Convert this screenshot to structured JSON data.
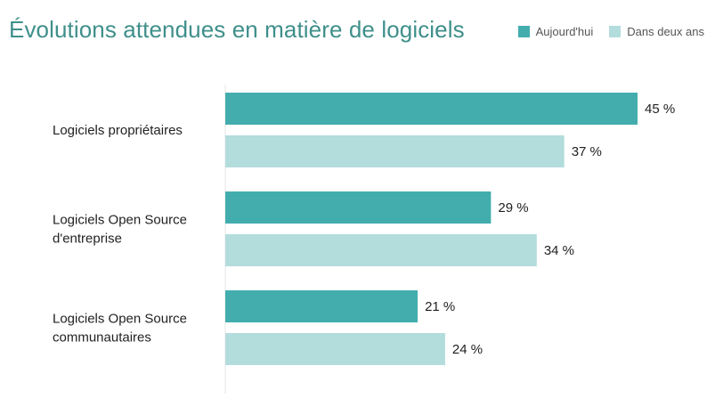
{
  "chart_data": {
    "type": "bar",
    "orientation": "horizontal",
    "title": "Évolutions attendues en matière de logiciels",
    "categories": [
      [
        "Logiciels propriétaires"
      ],
      [
        "Logiciels Open Source",
        "d'entreprise"
      ],
      [
        "Logiciels Open Source",
        "communautaires"
      ]
    ],
    "series": [
      {
        "name": "Aujourd'hui",
        "color": "#43adae",
        "values": [
          45,
          29,
          21
        ],
        "labels": [
          "45 %",
          "29 %",
          "21 %"
        ]
      },
      {
        "name": "Dans deux ans",
        "color": "#b3dcdd",
        "values": [
          37,
          34,
          24
        ],
        "labels": [
          "37 %",
          "34 %",
          "24 %"
        ]
      }
    ],
    "xlim": [
      0,
      45
    ],
    "legend_position": "top-right",
    "grid": false
  }
}
